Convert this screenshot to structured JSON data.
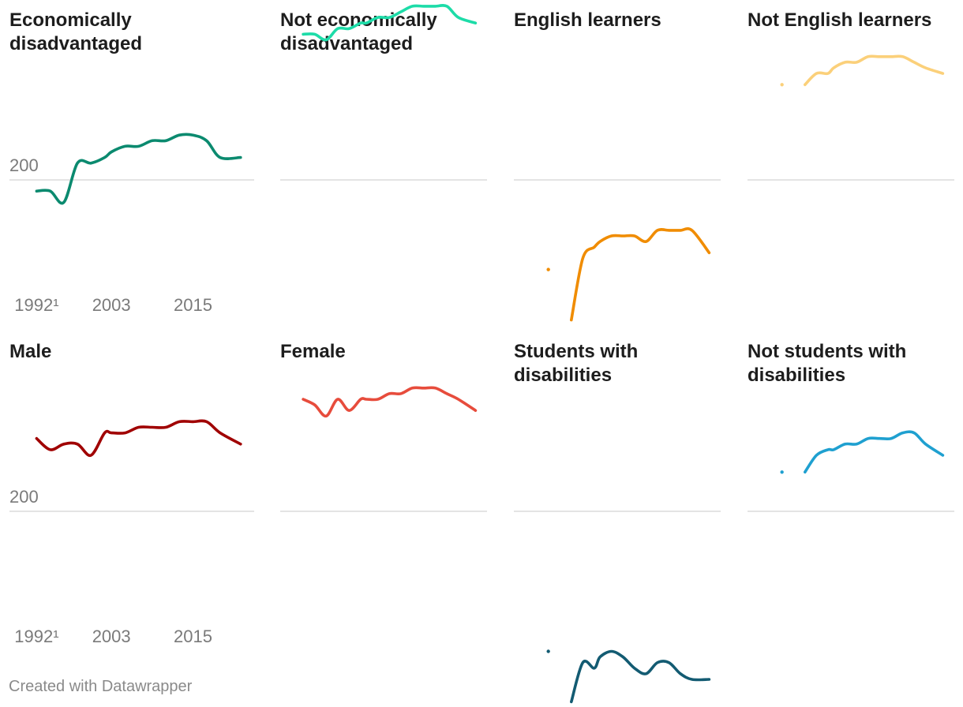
{
  "footer": "Created with Datawrapper",
  "chart_data": {
    "type": "line",
    "layout": "small-multiples",
    "grid": true,
    "x_ticks": [
      "1992¹",
      "2003",
      "2015"
    ],
    "y_ticks": [
      200
    ],
    "xlim": [
      1988,
      2024
    ],
    "ylim": [
      180,
      232
    ],
    "panels": [
      {
        "title": "Economically disadvantaged",
        "color": "#0b8a6f",
        "x": [
          1992,
          1994,
          1996,
          1998,
          2000,
          2002,
          2003,
          2005,
          2007,
          2009,
          2011,
          2013,
          2015,
          2017,
          2019,
          2022
        ],
        "y": [
          198,
          198,
          196,
          203,
          203,
          204,
          205,
          206,
          206,
          207,
          207,
          208,
          208,
          207,
          204,
          204
        ]
      },
      {
        "title": "Not economically disadvantaged",
        "color": "#1ddca8",
        "x": [
          1992,
          1994,
          1996,
          1998,
          2000,
          2002,
          2003,
          2005,
          2007,
          2009,
          2011,
          2013,
          2015,
          2017,
          2019,
          2022
        ],
        "y": [
          226,
          226,
          225,
          227,
          227,
          228,
          228,
          229,
          229,
          230,
          231,
          231,
          231,
          231,
          229,
          228
        ]
      },
      {
        "title": "English learners",
        "color": "#f08c00",
        "x": [
          1992,
          1994,
          1996,
          1998,
          2000,
          2002,
          2003,
          2005,
          2007,
          2009,
          2011,
          2013,
          2015,
          2017,
          2019,
          2022
        ],
        "y": [
          null,
          184,
          null,
          175,
          186,
          188,
          189,
          190,
          190,
          190,
          189,
          191,
          191,
          191,
          191,
          187
        ]
      },
      {
        "title": "Not English learners",
        "color": "#fbd07a",
        "x": [
          1992,
          1994,
          1996,
          1998,
          2000,
          2002,
          2003,
          2005,
          2007,
          2009,
          2011,
          2013,
          2015,
          2017,
          2019,
          2022
        ],
        "y": [
          null,
          217,
          null,
          217,
          219,
          219,
          220,
          221,
          221,
          222,
          222,
          222,
          222,
          221,
          220,
          219
        ]
      },
      {
        "title": "Male",
        "color": "#a00000",
        "x": [
          1992,
          1994,
          1996,
          1998,
          2000,
          2002,
          2003,
          2005,
          2007,
          2009,
          2011,
          2013,
          2015,
          2017,
          2019,
          2022
        ],
        "y": [
          213,
          211,
          212,
          212,
          210,
          214,
          214,
          214,
          215,
          215,
          215,
          216,
          216,
          216,
          214,
          212
        ]
      },
      {
        "title": "Female",
        "color": "#e74c3c",
        "x": [
          1992,
          1994,
          1996,
          1998,
          2000,
          2002,
          2003,
          2005,
          2007,
          2009,
          2011,
          2013,
          2015,
          2017,
          2019,
          2022
        ],
        "y": [
          220,
          219,
          217,
          220,
          218,
          220,
          220,
          220,
          221,
          221,
          222,
          222,
          222,
          221,
          220,
          218
        ]
      },
      {
        "title": "Students with disabilities",
        "color": "#135b72",
        "x": [
          1992,
          1994,
          1996,
          1998,
          2000,
          2002,
          2003,
          2005,
          2007,
          2009,
          2011,
          2013,
          2015,
          2017,
          2019,
          2022
        ],
        "y": [
          null,
          175,
          null,
          166,
          173,
          172,
          174,
          175,
          174,
          172,
          171,
          173,
          173,
          171,
          170,
          170
        ]
      },
      {
        "title": "Not students with disabilities",
        "color": "#1fa0d0",
        "x": [
          1992,
          1994,
          1996,
          1998,
          2000,
          2002,
          2003,
          2005,
          2007,
          2009,
          2011,
          2013,
          2015,
          2017,
          2019,
          2022
        ],
        "y": [
          null,
          207,
          null,
          207,
          210,
          211,
          211,
          212,
          212,
          213,
          213,
          213,
          214,
          214,
          212,
          210
        ]
      }
    ]
  }
}
